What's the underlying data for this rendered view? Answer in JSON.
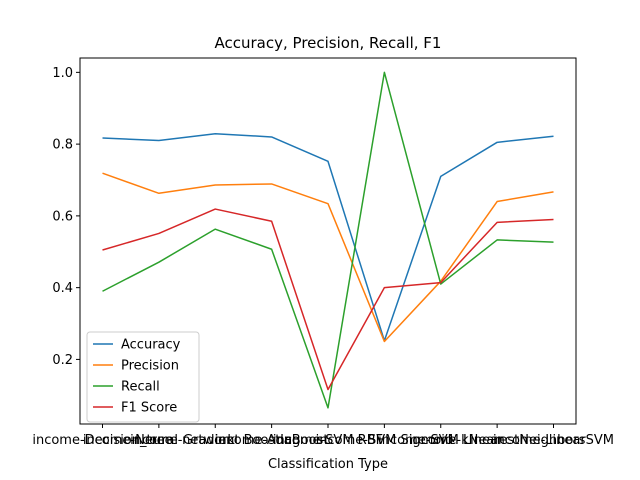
{
  "chart_data": {
    "type": "line",
    "title": "Accuracy, Precision, Recall, F1",
    "xlabel": "Classification Type",
    "ylabel": "",
    "categories": [
      "income-Decision_tree",
      "income-Neural network",
      "income-Gradient Boosting",
      "income-AdaBoost",
      "income-SVM RBF",
      "income-SVM Sigmoid",
      "income-SVM Linear",
      "income-kNearestNeighbors",
      "income-LinearSVM"
    ],
    "yticks": [
      "0.2",
      "0.4",
      "0.6",
      "0.8",
      "1.0"
    ],
    "ylim": [
      0.02,
      1.04
    ],
    "grid": false,
    "legend": "lower-left",
    "series": [
      {
        "name": "Accuracy",
        "color": "#1f77b4",
        "values": [
          0.817,
          0.81,
          0.829,
          0.82,
          0.752,
          0.252,
          0.71,
          0.805,
          0.822
        ]
      },
      {
        "name": "Precision",
        "color": "#ff7f0e",
        "values": [
          0.719,
          0.663,
          0.686,
          0.689,
          0.634,
          0.25,
          0.418,
          0.64,
          0.667
        ]
      },
      {
        "name": "Recall",
        "color": "#2ca02c",
        "values": [
          0.39,
          0.471,
          0.563,
          0.507,
          0.065,
          1.0,
          0.41,
          0.533,
          0.527
        ]
      },
      {
        "name": "F1 Score",
        "color": "#d62728",
        "values": [
          0.505,
          0.551,
          0.619,
          0.585,
          0.116,
          0.4,
          0.414,
          0.582,
          0.59
        ]
      }
    ]
  }
}
